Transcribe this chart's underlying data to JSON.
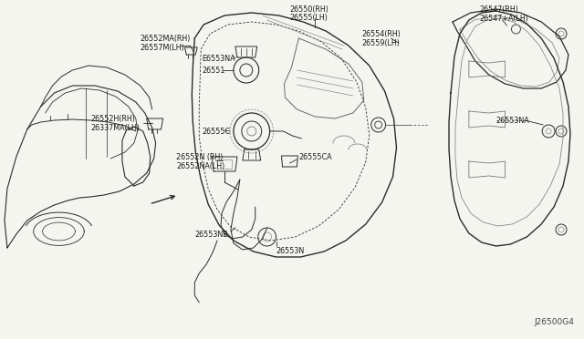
{
  "bg_color": "#f5f5f0",
  "line_color": "#2a2a2a",
  "text_color": "#1a1a1a",
  "diagram_id": "J26500G4",
  "font_size": 5.8,
  "labels": {
    "top_left_a": "26552MA(RH)",
    "top_left_b": "26557M(LH)",
    "mid_left_a": "26552H(RH)",
    "mid_left_b": "26337MA(LH)",
    "top_center_a": "26550(RH)",
    "top_center_b": "26555(LH)",
    "e6553na": "E6553NA",
    "l26551": "26551",
    "l26555c": "26555C",
    "l26552n_a": "26552N (RH)",
    "l26552n_b": "26552NA(LH)",
    "l26555ca": "26555CA",
    "l26553n": "26553N",
    "l26553nb": "26553NB",
    "l26554_a": "26554(RH)",
    "l26554_b": "26559(LH)",
    "l26547_a": "26547(RH)",
    "l26547_b": "26547+A(LH)",
    "l26553na_r": "26553NA"
  }
}
